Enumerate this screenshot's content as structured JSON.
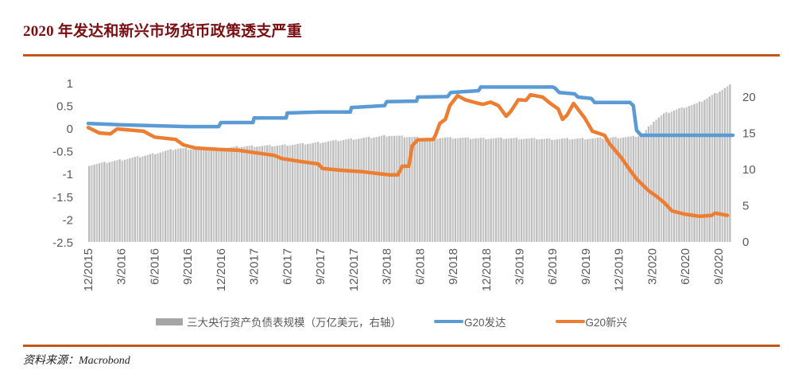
{
  "header": {
    "title": "2020 年发达和新兴市场货币政策透支严重"
  },
  "footer": {
    "source": "资料来源：Macrobond"
  },
  "colors": {
    "title": "#7a0f12",
    "rule": "#c0581a",
    "bars": "#c8c8c8",
    "developed": "#5b9bd5",
    "emerging": "#ed7d31"
  },
  "legend": {
    "items": [
      {
        "label": "三大央行资产负债表规模（万亿美元，右轴）",
        "type": "bar",
        "color": "#a6a6a6"
      },
      {
        "label": "G20发达",
        "type": "line",
        "color": "#5b9bd5"
      },
      {
        "label": "G20新兴",
        "type": "line",
        "color": "#ed7d31"
      }
    ]
  },
  "chart_data": {
    "type": "bar+line",
    "title": "2020 年发达和新兴市场货币政策透支严重",
    "xlabel": "",
    "ylabel_left": "",
    "ylabel_right": "",
    "x_tick_labels": [
      "12/2015",
      "3/2016",
      "6/2016",
      "9/2016",
      "12/2016",
      "3/2017",
      "6/2017",
      "9/2017",
      "12/2017",
      "3/2018",
      "6/2018",
      "9/2018",
      "12/2018",
      "3/2019",
      "6/2019",
      "9/2019",
      "12/2019",
      "3/2020",
      "6/2020",
      "9/2020"
    ],
    "left_axis": {
      "ticks": [
        1,
        0.5,
        0,
        -0.5,
        -1,
        -1.5,
        -2,
        -2.5
      ],
      "ylim": [
        -2.5,
        1
      ]
    },
    "right_axis": {
      "ticks": [
        20,
        15,
        10,
        5,
        0
      ],
      "ylim": [
        0,
        22
      ]
    },
    "grid": false,
    "legend_position": "bottom",
    "series": [
      {
        "name": "三大央行资产负债表规模（万亿美元，右轴）",
        "type": "bar",
        "axis": "right",
        "points_month_value": [
          [
            0,
            10.6
          ],
          [
            2,
            11.1
          ],
          [
            5,
            11.9
          ],
          [
            8,
            12.9
          ],
          [
            11,
            12.8
          ],
          [
            14,
            13.2
          ],
          [
            17,
            13.3
          ],
          [
            20,
            13.6
          ],
          [
            23,
            14.1
          ],
          [
            26,
            14.5
          ],
          [
            27,
            14.7
          ],
          [
            28,
            14.6
          ],
          [
            31,
            14.3
          ],
          [
            32,
            14.4
          ],
          [
            35,
            14.3
          ],
          [
            38,
            14.3
          ],
          [
            42,
            14.2
          ],
          [
            46,
            14.3
          ],
          [
            49,
            14.5
          ],
          [
            50,
            14.7
          ],
          [
            51,
            16.6
          ],
          [
            52,
            17.7
          ],
          [
            54,
            18.7
          ],
          [
            55,
            19.1
          ],
          [
            57,
            20.8
          ],
          [
            58,
            21.7
          ]
        ]
      },
      {
        "name": "G20发达",
        "type": "line",
        "axis": "left",
        "points_month_value": [
          [
            0,
            0.12
          ],
          [
            3,
            0.09
          ],
          [
            6,
            0.07
          ],
          [
            9,
            0.05
          ],
          [
            11.8,
            0.05
          ],
          [
            12,
            0.14
          ],
          [
            14.9,
            0.14
          ],
          [
            15,
            0.24
          ],
          [
            17.9,
            0.24
          ],
          [
            18,
            0.35
          ],
          [
            21,
            0.37
          ],
          [
            23.7,
            0.37
          ],
          [
            23.8,
            0.47
          ],
          [
            26.8,
            0.51
          ],
          [
            27,
            0.6
          ],
          [
            29.7,
            0.61
          ],
          [
            29.8,
            0.7
          ],
          [
            32.5,
            0.71
          ],
          [
            32.8,
            0.8
          ],
          [
            35.3,
            0.84
          ],
          [
            35.5,
            0.92
          ],
          [
            42,
            0.92
          ],
          [
            42.2,
            0.9
          ],
          [
            42.6,
            0.8
          ],
          [
            44,
            0.77
          ],
          [
            44.3,
            0.7
          ],
          [
            45.5,
            0.67
          ],
          [
            45.8,
            0.58
          ],
          [
            49,
            0.58
          ],
          [
            49.3,
            0.51
          ],
          [
            49.6,
            -0.03
          ],
          [
            50,
            -0.14
          ],
          [
            58.3,
            -0.14
          ]
        ]
      },
      {
        "name": "G20新兴",
        "type": "line",
        "axis": "left",
        "points_month_value": [
          [
            0,
            0.03
          ],
          [
            1,
            -0.09
          ],
          [
            2,
            -0.11
          ],
          [
            2.6,
            0.0
          ],
          [
            3.5,
            -0.02
          ],
          [
            5,
            -0.05
          ],
          [
            6,
            -0.18
          ],
          [
            7.9,
            -0.23
          ],
          [
            8.6,
            -0.35
          ],
          [
            9.7,
            -0.42
          ],
          [
            11.8,
            -0.45
          ],
          [
            13.6,
            -0.47
          ],
          [
            15,
            -0.52
          ],
          [
            16.8,
            -0.58
          ],
          [
            17.5,
            -0.65
          ],
          [
            19.3,
            -0.72
          ],
          [
            20.8,
            -0.77
          ],
          [
            21.2,
            -0.87
          ],
          [
            23,
            -0.91
          ],
          [
            24.8,
            -0.94
          ],
          [
            26.2,
            -0.98
          ],
          [
            27.3,
            -1.01
          ],
          [
            28,
            -1.01
          ],
          [
            28.4,
            -0.82
          ],
          [
            29,
            -0.82
          ],
          [
            29.3,
            -0.37
          ],
          [
            29.8,
            -0.24
          ],
          [
            31.2,
            -0.23
          ],
          [
            31.4,
            -0.14
          ],
          [
            31.8,
            0.12
          ],
          [
            32.3,
            0.21
          ],
          [
            32.7,
            0.51
          ],
          [
            33.4,
            0.73
          ],
          [
            34.1,
            0.64
          ],
          [
            35.3,
            0.56
          ],
          [
            35.7,
            0.54
          ],
          [
            36.4,
            0.59
          ],
          [
            37.1,
            0.51
          ],
          [
            37.8,
            0.28
          ],
          [
            38.2,
            0.38
          ],
          [
            38.9,
            0.64
          ],
          [
            39.6,
            0.63
          ],
          [
            40,
            0.75
          ],
          [
            41.1,
            0.7
          ],
          [
            41.8,
            0.56
          ],
          [
            42.5,
            0.44
          ],
          [
            42.9,
            0.21
          ],
          [
            43.3,
            0.3
          ],
          [
            43.9,
            0.56
          ],
          [
            44.9,
            0.24
          ],
          [
            45.6,
            -0.05
          ],
          [
            46.7,
            -0.14
          ],
          [
            47.1,
            -0.31
          ],
          [
            48.2,
            -0.63
          ],
          [
            48.9,
            -0.87
          ],
          [
            49.6,
            -1.1
          ],
          [
            50.7,
            -1.36
          ],
          [
            51.4,
            -1.48
          ],
          [
            52.1,
            -1.62
          ],
          [
            52.8,
            -1.8
          ],
          [
            53.9,
            -1.87
          ],
          [
            55.3,
            -1.92
          ],
          [
            56.4,
            -1.9
          ],
          [
            56.7,
            -1.85
          ],
          [
            57.8,
            -1.9
          ]
        ]
      }
    ]
  }
}
